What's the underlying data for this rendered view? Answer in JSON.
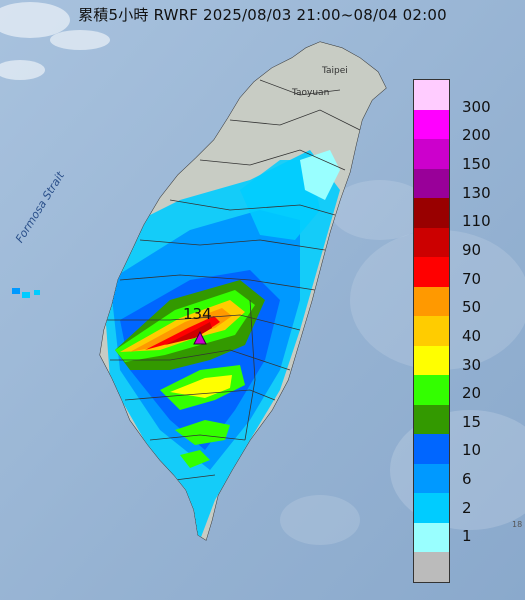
{
  "title": "累積5小時 RWRF 2025/08/03 21:00~08/04 02:00",
  "sea_labels": {
    "strait": "Formosa Strait"
  },
  "places": {
    "taipei": "Taipei",
    "taoyuan": "Taoyuan"
  },
  "peak_value": "134",
  "legend": {
    "levels": [
      {
        "label": "300",
        "color": "#ffccff"
      },
      {
        "label": "200",
        "color": "#ff00ff"
      },
      {
        "label": "150",
        "color": "#cc00cc"
      },
      {
        "label": "130",
        "color": "#990099"
      },
      {
        "label": "110",
        "color": "#990000"
      },
      {
        "label": "90",
        "color": "#cc0000"
      },
      {
        "label": "70",
        "color": "#ff0000"
      },
      {
        "label": "50",
        "color": "#ff9900"
      },
      {
        "label": "40",
        "color": "#ffcc00"
      },
      {
        "label": "30",
        "color": "#ffff00"
      },
      {
        "label": "20",
        "color": "#33ff00"
      },
      {
        "label": "15",
        "color": "#339900"
      },
      {
        "label": "10",
        "color": "#0066ff"
      },
      {
        "label": "6",
        "color": "#0099ff"
      },
      {
        "label": "2",
        "color": "#00ccff"
      },
      {
        "label": "1",
        "color": "#99ffff"
      },
      {
        "label": "",
        "color": "#bbbbbb"
      }
    ]
  },
  "edge_label": "18"
}
